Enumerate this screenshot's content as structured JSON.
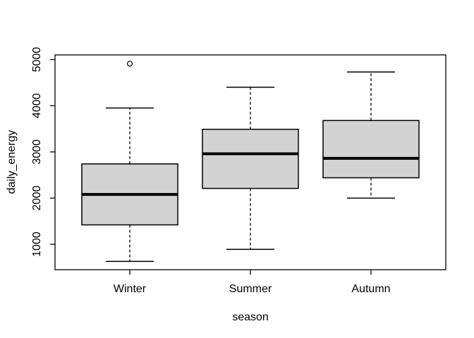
{
  "window": {
    "background": "#ffffff"
  },
  "chart_data": {
    "type": "boxplot",
    "title": "",
    "xlabel": "season",
    "ylabel": "daily_energy",
    "categories": [
      "Winter",
      "Summer",
      "Autumn"
    ],
    "yticks": [
      1000,
      2000,
      3000,
      4000,
      5000
    ],
    "ylim": [
      450,
      5100
    ],
    "grid": false,
    "legend": "none",
    "box_fill": "#d3d3d3",
    "line_color": "#000000",
    "outlier_fill": "#ffffff",
    "series": [
      {
        "name": "Winter",
        "whisker_low": 630,
        "q1": 1420,
        "median": 2080,
        "q3": 2740,
        "whisker_high": 3950,
        "outliers": [
          4910
        ]
      },
      {
        "name": "Summer",
        "whisker_low": 890,
        "q1": 2210,
        "median": 2960,
        "q3": 3490,
        "whisker_high": 4400,
        "outliers": []
      },
      {
        "name": "Autumn",
        "whisker_low": 2000,
        "q1": 2440,
        "median": 2860,
        "q3": 3680,
        "whisker_high": 4730,
        "outliers": []
      }
    ]
  }
}
